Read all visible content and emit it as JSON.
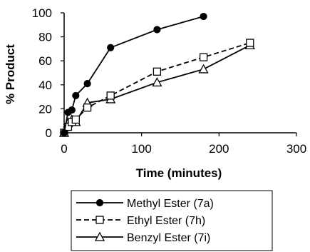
{
  "chart_data": {
    "type": "line",
    "title": "",
    "xlabel": "Time (minutes)",
    "ylabel": "% Product",
    "xlim": [
      0,
      300
    ],
    "ylim": [
      0,
      100
    ],
    "xticks": [
      0,
      100,
      200,
      300
    ],
    "yticks": [
      0,
      20,
      40,
      60,
      80,
      100
    ],
    "grid": false,
    "legend_position": "bottom",
    "series": [
      {
        "name": "Methyl Ester (7a)",
        "marker": "circle-filled",
        "line_style": "solid",
        "color": "#000000",
        "points": [
          [
            0,
            0
          ],
          [
            5,
            17
          ],
          [
            10,
            19
          ],
          [
            15,
            31
          ],
          [
            30,
            41
          ],
          [
            60,
            71
          ],
          [
            120,
            86
          ],
          [
            180,
            97
          ]
        ]
      },
      {
        "name": "Ethyl Ester (7h)",
        "marker": "square-open",
        "line_style": "dashed",
        "color": "#000000",
        "points": [
          [
            0,
            0
          ],
          [
            5,
            5
          ],
          [
            10,
            9
          ],
          [
            15,
            11
          ],
          [
            30,
            21
          ],
          [
            60,
            31
          ],
          [
            120,
            51
          ],
          [
            180,
            63
          ],
          [
            240,
            75
          ]
        ]
      },
      {
        "name": "Benzyl Ester (7i)",
        "marker": "triangle-open",
        "line_style": "solid",
        "color": "#000000",
        "points": [
          [
            0,
            0
          ],
          [
            5,
            8
          ],
          [
            10,
            11
          ],
          [
            15,
            9
          ],
          [
            30,
            25
          ],
          [
            60,
            28
          ],
          [
            120,
            42
          ],
          [
            180,
            53
          ],
          [
            240,
            73
          ]
        ]
      }
    ]
  }
}
